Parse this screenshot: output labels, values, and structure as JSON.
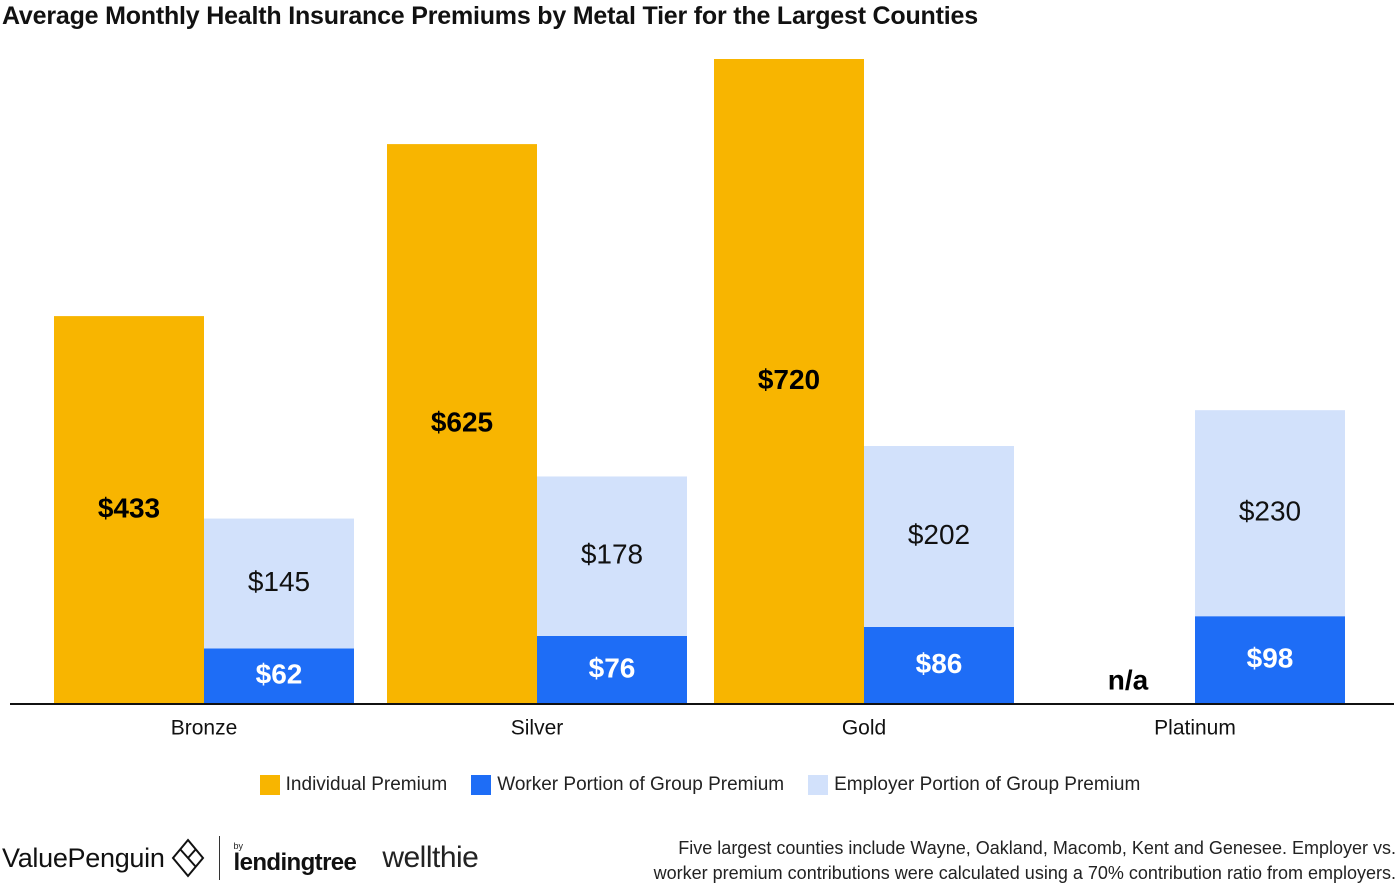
{
  "title": "Average Monthly Health Insurance Premiums by Metal Tier for the Largest Counties",
  "chart_data": {
    "type": "bar",
    "categories": [
      "Bronze",
      "Silver",
      "Gold",
      "Platinum"
    ],
    "series": [
      {
        "name": "Individual Premium",
        "values": [
          433,
          625,
          720,
          null
        ],
        "labels": [
          "$433",
          "$625",
          "$720",
          "n/a"
        ],
        "color": "#F8B500"
      },
      {
        "name": "Worker Portion of Group Premium",
        "values": [
          62,
          76,
          86,
          98
        ],
        "labels": [
          "$62",
          "$76",
          "$86",
          "$98"
        ],
        "color": "#1E6DF6"
      },
      {
        "name": "Employer Portion of Group Premium",
        "values": [
          145,
          178,
          202,
          230
        ],
        "labels": [
          "$145",
          "$178",
          "$202",
          "$230"
        ],
        "color": "#D2E1FB"
      }
    ],
    "stacked_series": [
      "Worker Portion of Group Premium",
      "Employer Portion of Group Premium"
    ],
    "ylim": [
      0,
      720
    ],
    "xlabel": "",
    "ylabel": "",
    "grid": false,
    "legend_position": "bottom-center"
  },
  "footer": {
    "brand_valuepenguin": "ValuePenguin",
    "brand_by": "by",
    "brand_lendingtree": "lendingtree",
    "brand_wellthie": "wellthie",
    "note_line1": "Five largest counties include Wayne, Oakland, Macomb, Kent and Genesee. Employer vs.",
    "note_line2": "worker premium contributions were calculated using a 70% contribution ratio from employers."
  }
}
